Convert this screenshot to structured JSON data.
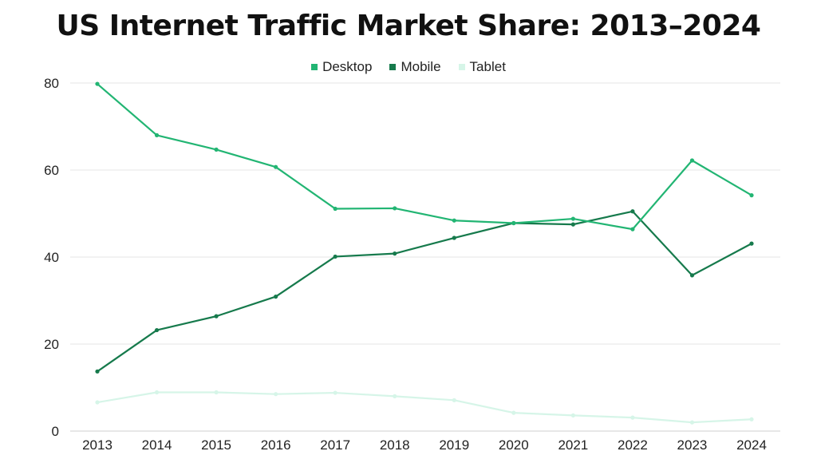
{
  "chart_data": {
    "type": "line",
    "title": "US Internet Traffic Market Share: 2013–2024",
    "xlabel": "",
    "ylabel": "",
    "x": [
      "2013",
      "2014",
      "2015",
      "2016",
      "2017",
      "2018",
      "2019",
      "2020",
      "2021",
      "2022",
      "2023",
      "2024"
    ],
    "yticks": [
      "0",
      "20",
      "40",
      "60",
      "80"
    ],
    "ylim": [
      0,
      80
    ],
    "grid": true,
    "legend_position": "top-center",
    "series": [
      {
        "name": "Desktop",
        "color": "#22b573",
        "values": [
          79.8,
          68.0,
          64.7,
          60.7,
          51.1,
          51.2,
          48.4,
          47.8,
          48.8,
          46.4,
          62.2,
          54.2
        ]
      },
      {
        "name": "Mobile",
        "color": "#167a4c",
        "values": [
          13.7,
          23.2,
          26.4,
          30.9,
          40.1,
          40.8,
          44.4,
          47.8,
          47.5,
          50.5,
          35.8,
          43.1
        ]
      },
      {
        "name": "Tablet",
        "color": "#d6f5e8",
        "values": [
          6.6,
          8.9,
          8.9,
          8.5,
          8.8,
          8.0,
          7.1,
          4.2,
          3.6,
          3.1,
          2.0,
          2.7
        ]
      }
    ]
  }
}
